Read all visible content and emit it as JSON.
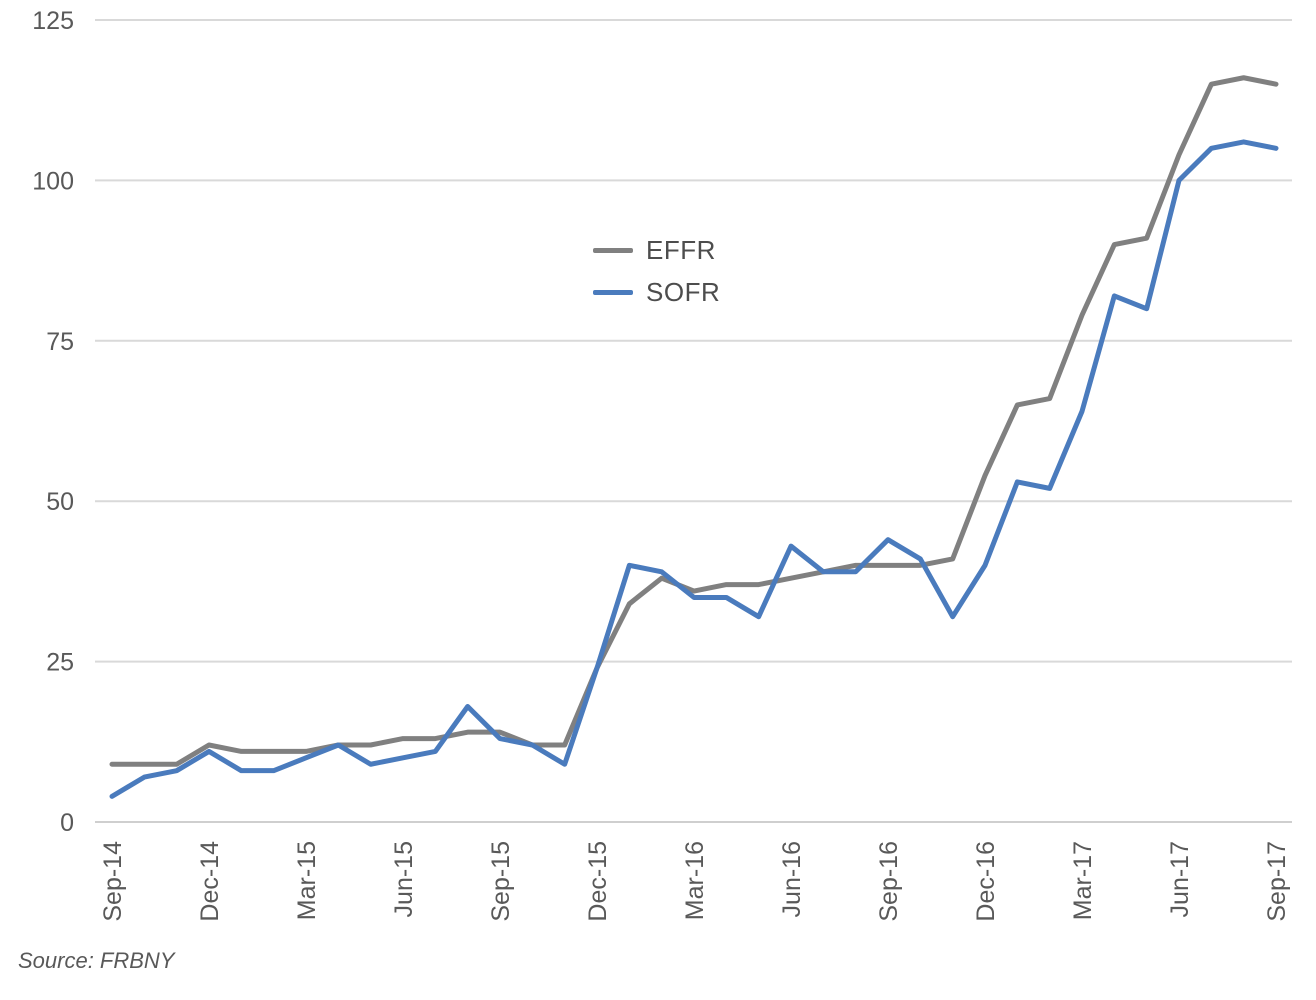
{
  "source_note": "Source: FRBNY",
  "chart_data": {
    "type": "line",
    "title": "",
    "xlabel": "",
    "ylabel": "",
    "x": [
      "Sep-14",
      "Oct-14",
      "Nov-14",
      "Dec-14",
      "Jan-15",
      "Feb-15",
      "Mar-15",
      "Apr-15",
      "May-15",
      "Jun-15",
      "Jul-15",
      "Aug-15",
      "Sep-15",
      "Oct-15",
      "Nov-15",
      "Dec-15",
      "Jan-16",
      "Feb-16",
      "Mar-16",
      "Apr-16",
      "May-16",
      "Jun-16",
      "Jul-16",
      "Aug-16",
      "Sep-16",
      "Oct-16",
      "Nov-16",
      "Dec-16",
      "Jan-17",
      "Feb-17",
      "Mar-17",
      "Apr-17",
      "May-17",
      "Jun-17",
      "Jul-17",
      "Aug-17",
      "Sep-17"
    ],
    "series": [
      {
        "name": "EFFR",
        "color": "#808080",
        "values": [
          9,
          9,
          9,
          12,
          11,
          11,
          11,
          12,
          12,
          13,
          13,
          14,
          14,
          12,
          12,
          24,
          34,
          38,
          36,
          37,
          37,
          38,
          39,
          40,
          40,
          40,
          41,
          54,
          65,
          66,
          79,
          90,
          91,
          104,
          115,
          116,
          115
        ]
      },
      {
        "name": "SOFR",
        "color": "#4a7bbd",
        "values": [
          4,
          7,
          8,
          11,
          8,
          8,
          10,
          12,
          9,
          10,
          11,
          18,
          13,
          12,
          9,
          24,
          40,
          39,
          35,
          35,
          32,
          43,
          39,
          39,
          44,
          41,
          32,
          40,
          53,
          52,
          64,
          82,
          80,
          100,
          105,
          106,
          105
        ]
      }
    ],
    "ylim": [
      0,
      125
    ],
    "yticks": [
      0,
      25,
      50,
      75,
      100,
      125
    ],
    "xtick_labels": [
      "Sep-14",
      "Dec-14",
      "Mar-15",
      "Jun-15",
      "Sep-15",
      "Dec-15",
      "Mar-16",
      "Jun-16",
      "Sep-16",
      "Dec-16",
      "Mar-17",
      "Jun-17",
      "Sep-17"
    ],
    "xtick_every": 3,
    "grid": true,
    "legend_position": "upper-center",
    "colors": {
      "grid": "#d9d9d9",
      "axis": "#cfcfcf",
      "tick_text": "#595959"
    }
  }
}
